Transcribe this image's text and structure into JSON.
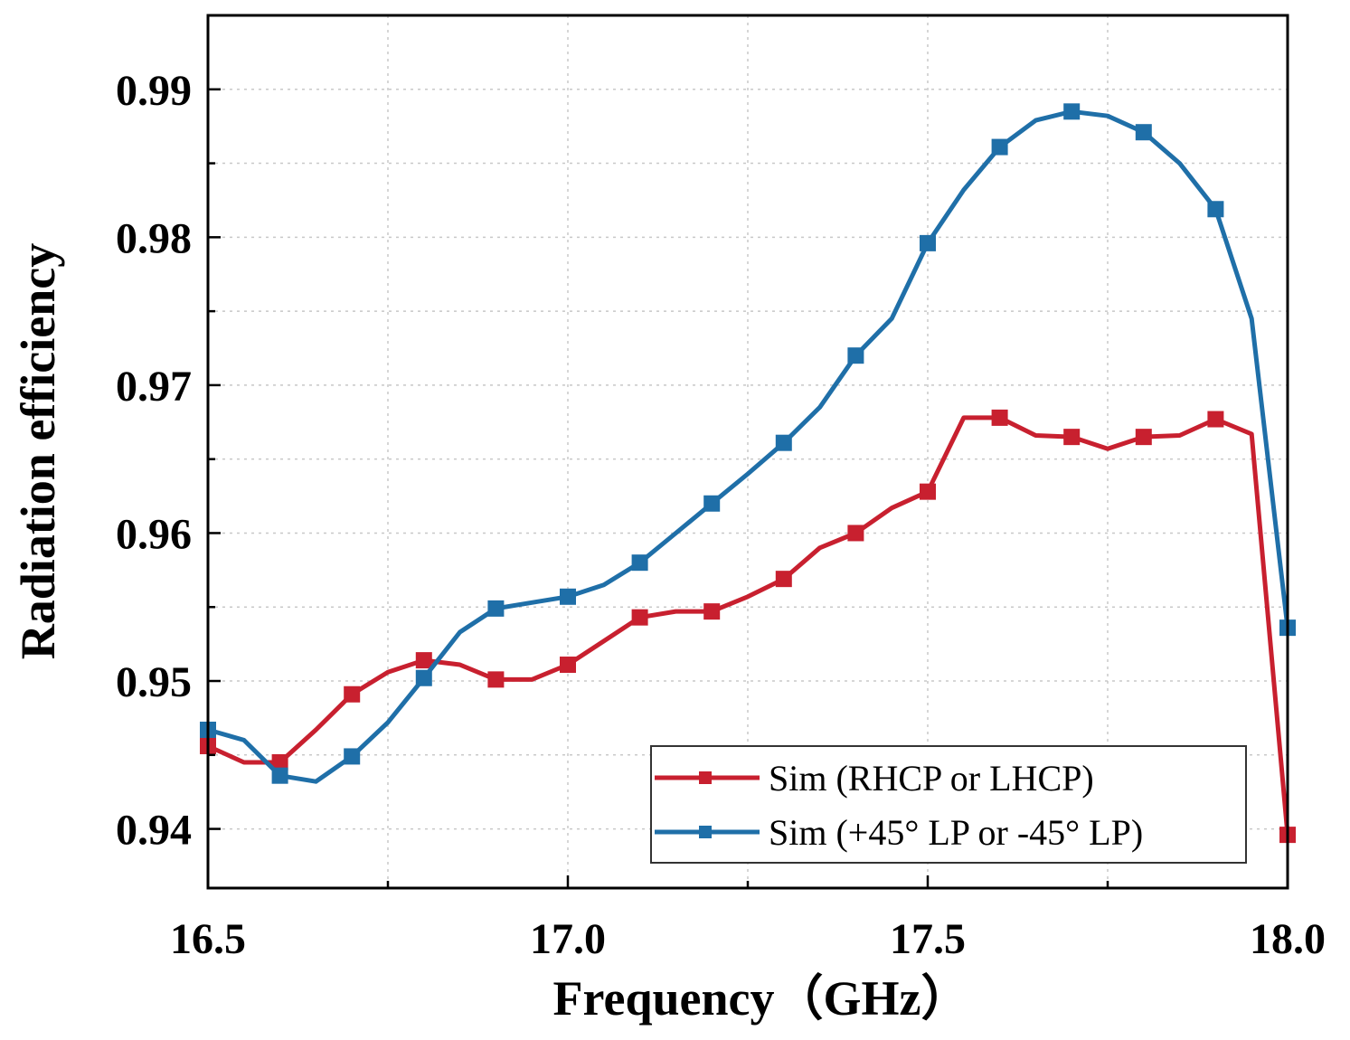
{
  "chart_data": {
    "type": "line",
    "xlabel": "Frequency（GHz）",
    "ylabel": "Radiation efficiency",
    "xlim": [
      16.5,
      18.0
    ],
    "ylim": [
      0.936,
      0.995
    ],
    "xticks": [
      16.5,
      17.0,
      17.5,
      18.0
    ],
    "xtick_labels": [
      "16.5",
      "17.0",
      "17.5",
      "18.0"
    ],
    "yticks": [
      0.94,
      0.95,
      0.96,
      0.97,
      0.98,
      0.99
    ],
    "ytick_labels": [
      "0.94",
      "0.95",
      "0.96",
      "0.97",
      "0.98",
      "0.99"
    ],
    "grid": true,
    "legend_position": "bottom-right",
    "series": [
      {
        "name": "Sim (RHCP or LHCP)",
        "color": "#c8202f",
        "marker": "square",
        "x": [
          16.5,
          16.55,
          16.6,
          16.65,
          16.7,
          16.75,
          16.8,
          16.85,
          16.9,
          16.95,
          17.0,
          17.05,
          17.1,
          17.15,
          17.2,
          17.25,
          17.3,
          17.35,
          17.4,
          17.45,
          17.5,
          17.55,
          17.6,
          17.65,
          17.7,
          17.75,
          17.8,
          17.85,
          17.9,
          17.95,
          18.0
        ],
        "y": [
          0.9456,
          0.9445,
          0.9445,
          0.9467,
          0.9491,
          0.9506,
          0.9514,
          0.9511,
          0.9501,
          0.9501,
          0.9511,
          0.9527,
          0.9543,
          0.9547,
          0.9547,
          0.9557,
          0.9569,
          0.959,
          0.96,
          0.9617,
          0.9628,
          0.9678,
          0.9678,
          0.9666,
          0.9665,
          0.9657,
          0.9665,
          0.9666,
          0.9677,
          0.9667,
          0.9396
        ],
        "marker_x": [
          16.5,
          16.6,
          16.7,
          16.8,
          16.9,
          17.0,
          17.1,
          17.2,
          17.3,
          17.4,
          17.5,
          17.6,
          17.7,
          17.8,
          17.9,
          18.0
        ]
      },
      {
        "name": "Sim (+45° LP or -45° LP)",
        "color": "#1f6fa8",
        "marker": "square",
        "x": [
          16.5,
          16.55,
          16.6,
          16.65,
          16.7,
          16.75,
          16.8,
          16.85,
          16.9,
          16.95,
          17.0,
          17.05,
          17.1,
          17.15,
          17.2,
          17.25,
          17.3,
          17.35,
          17.4,
          17.45,
          17.5,
          17.55,
          17.6,
          17.65,
          17.7,
          17.75,
          17.8,
          17.85,
          17.9,
          17.95,
          18.0
        ],
        "y": [
          0.9467,
          0.946,
          0.9436,
          0.9432,
          0.9449,
          0.9472,
          0.9502,
          0.9533,
          0.9549,
          0.9553,
          0.9557,
          0.9565,
          0.958,
          0.96,
          0.962,
          0.964,
          0.9661,
          0.9685,
          0.972,
          0.9745,
          0.9796,
          0.9832,
          0.9861,
          0.9879,
          0.9885,
          0.9882,
          0.9871,
          0.985,
          0.9819,
          0.9745,
          0.9536
        ],
        "marker_x": [
          16.5,
          16.6,
          16.7,
          16.8,
          16.9,
          17.0,
          17.1,
          17.2,
          17.3,
          17.4,
          17.5,
          17.6,
          17.7,
          17.8,
          17.9,
          18.0
        ]
      }
    ]
  }
}
